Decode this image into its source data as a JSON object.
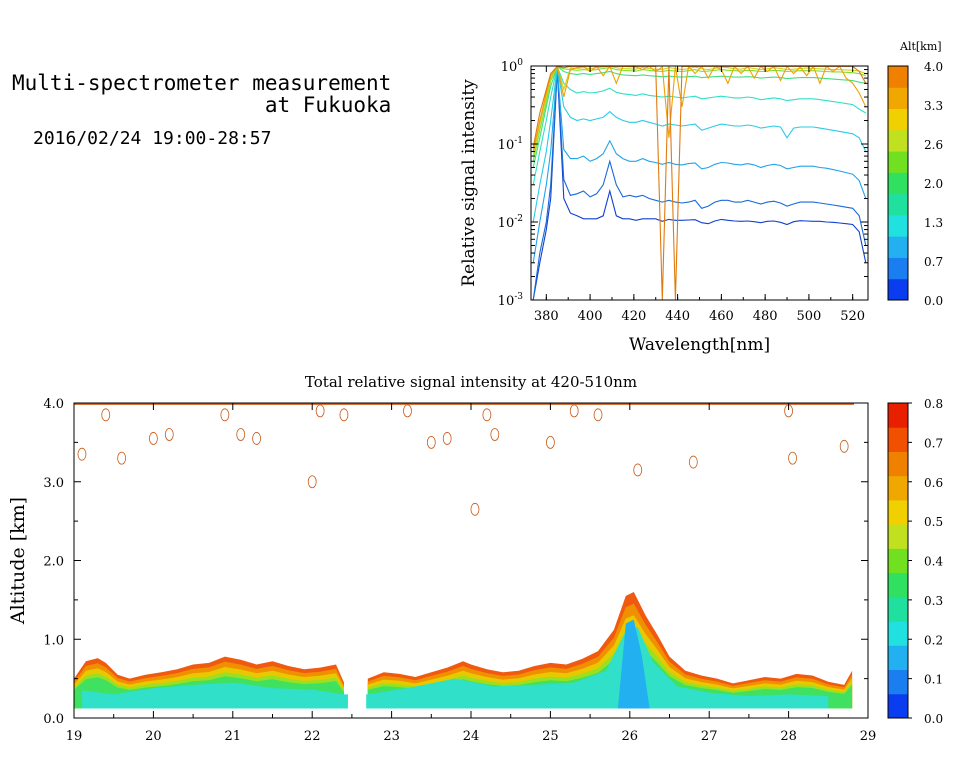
{
  "header": {
    "title_line1": "Multi-spectrometer measurement",
    "title_line2": "at Fukuoka",
    "datetime": "2016/02/24 19:00-28:57"
  },
  "chart_data": [
    {
      "type": "line",
      "xlabel": "Wavelength[nm]",
      "ylabel": "Relative signal intensity",
      "xlim": [
        373,
        527
      ],
      "ylim": [
        0.001,
        1
      ],
      "yscale": "log",
      "x_ticks": [
        "380",
        "400",
        "420",
        "440",
        "460",
        "480",
        "500",
        "520"
      ],
      "y_ticks": [
        "10",
        "10",
        "10",
        "10"
      ],
      "y_tick_exponents": [
        "-3",
        "-2",
        "-1",
        "0"
      ],
      "colorbar": {
        "label": "Alt[km]",
        "ticks": [
          "4.0",
          "3.3",
          "2.6",
          "2.0",
          "1.3",
          "0.7",
          "0.0"
        ],
        "colors": [
          "#0a3cf0",
          "#1a7df0",
          "#22b0f0",
          "#20e0e0",
          "#20e0a0",
          "#30e060",
          "#70e020",
          "#c0e020",
          "#f0d000",
          "#f0a800",
          "#f08000"
        ]
      },
      "x": [
        374,
        377,
        380,
        382,
        385,
        388,
        391,
        394,
        397,
        400,
        403,
        406,
        409,
        412,
        415,
        418,
        421,
        424,
        427,
        430,
        433,
        436,
        439,
        442,
        445,
        448,
        451,
        454,
        457,
        460,
        463,
        466,
        469,
        472,
        475,
        478,
        481,
        484,
        487,
        490,
        493,
        496,
        499,
        502,
        505,
        508,
        511,
        514,
        517,
        520,
        523,
        526
      ],
      "series": [
        {
          "altitude": 0.0,
          "color": "#1040d0",
          "values": [
            0.001,
            0.003,
            0.008,
            0.02,
            0.9,
            0.02,
            0.013,
            0.012,
            0.011,
            0.011,
            0.011,
            0.012,
            0.025,
            0.012,
            0.011,
            0.011,
            0.0105,
            0.011,
            0.011,
            0.011,
            0.0102,
            0.0108,
            0.0105,
            0.0105,
            0.0106,
            0.0107,
            0.0098,
            0.0095,
            0.0103,
            0.0108,
            0.0105,
            0.0103,
            0.0102,
            0.0103,
            0.0101,
            0.0098,
            0.0102,
            0.0103,
            0.0099,
            0.0093,
            0.0101,
            0.0104,
            0.0103,
            0.0102,
            0.0102,
            0.01,
            0.0099,
            0.0097,
            0.0095,
            0.0093,
            0.0075,
            0.003
          ]
        },
        {
          "altitude": 0.35,
          "color": "#1a6ad8",
          "values": [
            0.001,
            0.004,
            0.01,
            0.03,
            0.9,
            0.035,
            0.022,
            0.023,
            0.025,
            0.021,
            0.023,
            0.03,
            0.06,
            0.03,
            0.021,
            0.022,
            0.021,
            0.022,
            0.02,
            0.019,
            0.018,
            0.019,
            0.018,
            0.0175,
            0.018,
            0.019,
            0.015,
            0.016,
            0.018,
            0.019,
            0.019,
            0.018,
            0.018,
            0.019,
            0.018,
            0.017,
            0.018,
            0.0185,
            0.0175,
            0.016,
            0.017,
            0.018,
            0.018,
            0.018,
            0.0175,
            0.017,
            0.0165,
            0.016,
            0.0155,
            0.015,
            0.012,
            0.005
          ]
        },
        {
          "altitude": 0.7,
          "color": "#22a4e8",
          "values": [
            0.003,
            0.01,
            0.03,
            0.08,
            0.95,
            0.085,
            0.065,
            0.065,
            0.07,
            0.06,
            0.065,
            0.075,
            0.11,
            0.075,
            0.065,
            0.06,
            0.06,
            0.065,
            0.06,
            0.058,
            0.055,
            0.058,
            0.055,
            0.054,
            0.056,
            0.057,
            0.048,
            0.05,
            0.055,
            0.058,
            0.057,
            0.055,
            0.054,
            0.056,
            0.054,
            0.05,
            0.053,
            0.055,
            0.053,
            0.048,
            0.05,
            0.052,
            0.052,
            0.052,
            0.05,
            0.049,
            0.047,
            0.045,
            0.043,
            0.041,
            0.034,
            0.02
          ]
        },
        {
          "altitude": 1.0,
          "color": "#28cce8",
          "values": [
            0.01,
            0.03,
            0.08,
            0.2,
            0.97,
            0.3,
            0.22,
            0.2,
            0.21,
            0.2,
            0.21,
            0.22,
            0.26,
            0.22,
            0.2,
            0.19,
            0.19,
            0.2,
            0.19,
            0.18,
            0.17,
            0.18,
            0.175,
            0.17,
            0.175,
            0.18,
            0.15,
            0.16,
            0.17,
            0.18,
            0.175,
            0.17,
            0.17,
            0.175,
            0.17,
            0.16,
            0.165,
            0.17,
            0.165,
            0.12,
            0.16,
            0.165,
            0.165,
            0.165,
            0.16,
            0.155,
            0.15,
            0.145,
            0.14,
            0.135,
            0.12,
            0.08
          ]
        },
        {
          "altitude": 1.3,
          "color": "#30e0c8",
          "values": [
            0.03,
            0.08,
            0.2,
            0.4,
            0.98,
            0.6,
            0.5,
            0.45,
            0.47,
            0.45,
            0.46,
            0.48,
            0.52,
            0.46,
            0.44,
            0.43,
            0.42,
            0.44,
            0.42,
            0.41,
            0.4,
            0.41,
            0.4,
            0.39,
            0.4,
            0.41,
            0.38,
            0.39,
            0.4,
            0.41,
            0.4,
            0.39,
            0.39,
            0.4,
            0.39,
            0.37,
            0.38,
            0.39,
            0.38,
            0.36,
            0.37,
            0.38,
            0.38,
            0.38,
            0.37,
            0.36,
            0.35,
            0.34,
            0.33,
            0.32,
            0.28,
            0.25
          ]
        },
        {
          "altitude": 1.7,
          "color": "#40e080",
          "values": [
            0.05,
            0.12,
            0.3,
            0.55,
            0.99,
            0.85,
            0.8,
            0.78,
            0.8,
            0.78,
            0.8,
            0.82,
            0.85,
            0.8,
            0.77,
            0.76,
            0.75,
            0.77,
            0.75,
            0.74,
            0.73,
            0.74,
            0.73,
            0.72,
            0.73,
            0.74,
            0.71,
            0.72,
            0.73,
            0.74,
            0.73,
            0.72,
            0.72,
            0.73,
            0.72,
            0.7,
            0.71,
            0.72,
            0.71,
            0.69,
            0.7,
            0.71,
            0.71,
            0.71,
            0.7,
            0.69,
            0.68,
            0.67,
            0.66,
            0.65,
            0.62,
            0.6
          ]
        },
        {
          "altitude": 2.3,
          "color": "#80e030",
          "values": [
            0.06,
            0.15,
            0.35,
            0.65,
            0.99,
            0.92,
            0.9,
            0.88,
            0.9,
            0.88,
            0.9,
            0.93,
            0.95,
            0.9,
            0.88,
            0.87,
            0.86,
            0.9,
            0.88,
            0.86,
            0.85,
            0.88,
            0.86,
            0.85,
            0.87,
            0.9,
            0.85,
            0.86,
            0.88,
            0.9,
            0.88,
            0.87,
            0.86,
            0.88,
            0.87,
            0.85,
            0.86,
            0.88,
            0.87,
            0.85,
            0.86,
            0.87,
            0.87,
            0.87,
            0.86,
            0.85,
            0.84,
            0.84,
            0.83,
            0.82,
            0.8,
            0.75
          ]
        },
        {
          "altitude": 3.0,
          "color": "#d0d020",
          "values": [
            0.07,
            0.18,
            0.4,
            0.7,
            0.99,
            0.5,
            0.95,
            0.93,
            0.95,
            0.93,
            0.95,
            0.97,
            0.99,
            0.95,
            0.93,
            0.92,
            0.91,
            0.96,
            0.93,
            0.91,
            0.9,
            0.95,
            0.93,
            0.9,
            0.92,
            0.97,
            0.92,
            0.9,
            0.93,
            0.97,
            0.95,
            0.92,
            0.91,
            0.96,
            0.93,
            0.9,
            0.92,
            0.95,
            0.93,
            0.9,
            0.91,
            0.93,
            0.94,
            0.93,
            0.92,
            0.91,
            0.9,
            0.9,
            0.89,
            0.88,
            0.86,
            0.8
          ]
        },
        {
          "altitude": 3.7,
          "color": "#f0a000",
          "values": [
            0.08,
            0.2,
            0.45,
            0.75,
            0.99,
            0.4,
            0.9,
            0.95,
            0.99,
            0.85,
            0.99,
            0.75,
            0.99,
            0.6,
            0.99,
            0.98,
            0.97,
            0.9,
            0.99,
            0.85,
            0.97,
            0.12,
            0.99,
            0.3,
            0.99,
            0.8,
            0.99,
            0.7,
            0.99,
            0.9,
            0.6,
            0.99,
            0.8,
            0.99,
            0.7,
            0.99,
            0.85,
            0.99,
            0.65,
            0.99,
            0.8,
            0.97,
            0.75,
            0.99,
            0.6,
            0.99,
            0.85,
            0.99,
            0.7,
            0.6,
            0.45,
            0.3
          ]
        },
        {
          "altitude": 4.0,
          "color": "#e07a10",
          "values": [
            0.09,
            0.25,
            0.5,
            0.8,
            0.99,
            0.95,
            0.99,
            0.99,
            0.99,
            0.99,
            0.99,
            0.99,
            0.99,
            0.99,
            0.99,
            0.99,
            0.99,
            0.99,
            0.99,
            0.99,
            0.001,
            0.99,
            0.001,
            0.99,
            0.99,
            0.99,
            0.99,
            0.99,
            0.99,
            0.99,
            0.99,
            0.99,
            0.99,
            0.99,
            0.99,
            0.99,
            0.99,
            0.99,
            0.99,
            0.99,
            0.99,
            0.99,
            0.99,
            0.99,
            0.99,
            0.99,
            0.99,
            0.99,
            0.99,
            0.99,
            0.85,
            0.6
          ]
        }
      ]
    },
    {
      "type": "heatmap",
      "title": "Total relative signal intensity at 420-510nm",
      "ylabel": "Altitude [km]",
      "xlim": [
        19,
        29
      ],
      "ylim": [
        0,
        4
      ],
      "x_ticks": [
        "19",
        "20",
        "21",
        "22",
        "23",
        "24",
        "25",
        "26",
        "27",
        "28",
        "29"
      ],
      "y_ticks": [
        "0.0",
        "1.0",
        "2.0",
        "3.0",
        "4.0"
      ],
      "colorbar": {
        "ticks": [
          "0.0",
          "0.1",
          "0.2",
          "0.3",
          "0.4",
          "0.5",
          "0.6",
          "0.7",
          "0.8"
        ],
        "colors": [
          "#0a3cf0",
          "#1a7df0",
          "#22b0f0",
          "#20e0e0",
          "#20e0a0",
          "#30e060",
          "#70e020",
          "#c0e020",
          "#f0d000",
          "#f0a800",
          "#f08000",
          "#f05000",
          "#e82000"
        ]
      },
      "boundary_layer_top_km": [
        [
          19.0,
          0.5
        ],
        [
          19.15,
          0.72
        ],
        [
          19.3,
          0.76
        ],
        [
          19.4,
          0.7
        ],
        [
          19.55,
          0.55
        ],
        [
          19.7,
          0.5
        ],
        [
          19.9,
          0.55
        ],
        [
          20.1,
          0.58
        ],
        [
          20.3,
          0.62
        ],
        [
          20.5,
          0.68
        ],
        [
          20.7,
          0.7
        ],
        [
          20.9,
          0.78
        ],
        [
          21.1,
          0.74
        ],
        [
          21.3,
          0.68
        ],
        [
          21.5,
          0.72
        ],
        [
          21.7,
          0.66
        ],
        [
          21.9,
          0.62
        ],
        [
          22.1,
          0.64
        ],
        [
          22.3,
          0.68
        ],
        [
          22.4,
          0.45
        ],
        [
          22.5,
          0.0
        ],
        [
          22.65,
          0.0
        ],
        [
          22.7,
          0.5
        ],
        [
          22.9,
          0.58
        ],
        [
          23.1,
          0.56
        ],
        [
          23.3,
          0.52
        ],
        [
          23.5,
          0.58
        ],
        [
          23.7,
          0.64
        ],
        [
          23.9,
          0.72
        ],
        [
          24.0,
          0.68
        ],
        [
          24.2,
          0.62
        ],
        [
          24.4,
          0.58
        ],
        [
          24.6,
          0.6
        ],
        [
          24.8,
          0.66
        ],
        [
          25.0,
          0.7
        ],
        [
          25.2,
          0.68
        ],
        [
          25.4,
          0.75
        ],
        [
          25.6,
          0.85
        ],
        [
          25.8,
          1.12
        ],
        [
          25.95,
          1.55
        ],
        [
          26.05,
          1.6
        ],
        [
          26.2,
          1.3
        ],
        [
          26.35,
          1.05
        ],
        [
          26.5,
          0.78
        ],
        [
          26.7,
          0.6
        ],
        [
          26.9,
          0.54
        ],
        [
          27.1,
          0.5
        ],
        [
          27.3,
          0.44
        ],
        [
          27.5,
          0.48
        ],
        [
          27.7,
          0.52
        ],
        [
          27.9,
          0.5
        ],
        [
          28.1,
          0.56
        ],
        [
          28.3,
          0.54
        ],
        [
          28.5,
          0.46
        ],
        [
          28.7,
          0.42
        ],
        [
          28.8,
          0.6
        ]
      ],
      "core_top_km": [
        [
          19.1,
          0.35
        ],
        [
          19.5,
          0.3
        ],
        [
          20.0,
          0.38
        ],
        [
          20.5,
          0.42
        ],
        [
          21.0,
          0.45
        ],
        [
          21.5,
          0.38
        ],
        [
          22.0,
          0.36
        ],
        [
          22.4,
          0.3
        ],
        [
          22.7,
          0.3
        ],
        [
          23.2,
          0.38
        ],
        [
          23.8,
          0.5
        ],
        [
          24.3,
          0.4
        ],
        [
          24.8,
          0.42
        ],
        [
          25.3,
          0.45
        ],
        [
          25.7,
          0.6
        ],
        [
          25.95,
          1.1
        ],
        [
          26.1,
          1.15
        ],
        [
          26.3,
          0.7
        ],
        [
          26.6,
          0.4
        ],
        [
          27.0,
          0.32
        ],
        [
          27.5,
          0.28
        ],
        [
          28.0,
          0.3
        ],
        [
          28.5,
          0.28
        ]
      ]
    }
  ]
}
